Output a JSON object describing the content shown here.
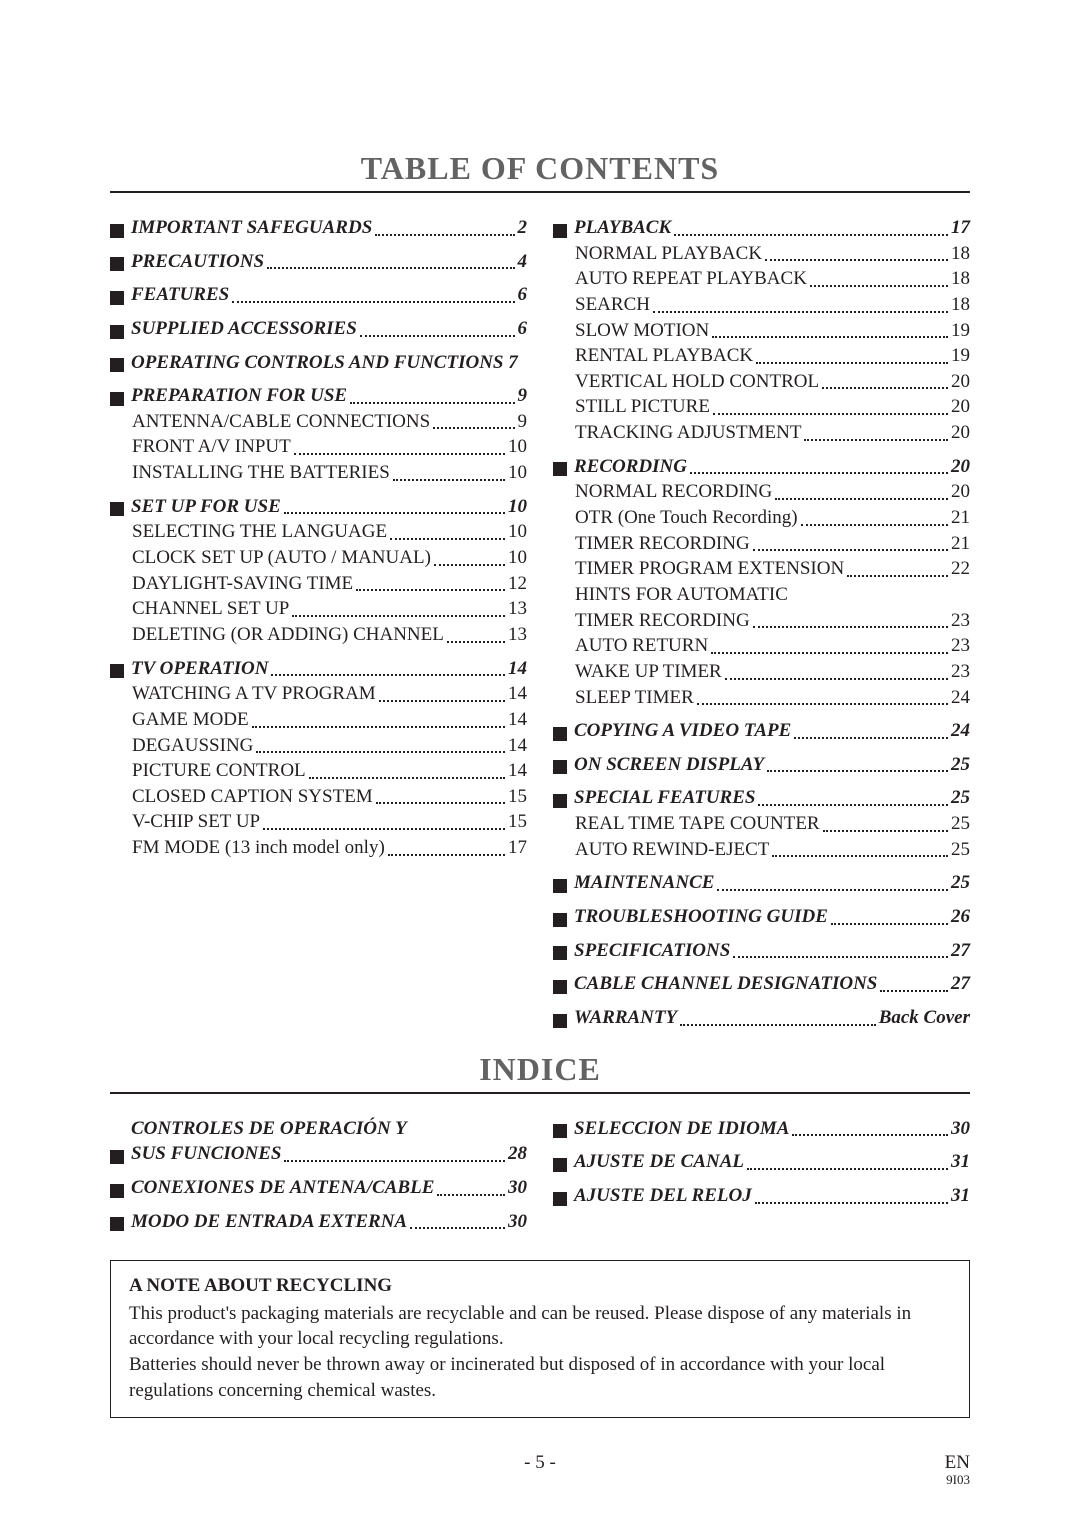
{
  "title_toc": "TABLE OF CONTENTS",
  "title_indice": "INDICE",
  "colors": {
    "text": "#231f20",
    "title_grey": "#636363",
    "background": "#ffffff"
  },
  "toc": {
    "left": [
      {
        "major": true,
        "label": "IMPORTANT SAFEGUARDS",
        "page": "2"
      },
      {
        "major": true,
        "label": "PRECAUTIONS",
        "page": "4"
      },
      {
        "major": true,
        "label": "FEATURES",
        "page": "6"
      },
      {
        "major": true,
        "label": "SUPPLIED ACCESSORIES",
        "page": "6"
      },
      {
        "major": true,
        "label": "OPERATING CONTROLS AND FUNCTIONS",
        "page": "7",
        "nodots": true
      },
      {
        "major": true,
        "label": "PREPARATION FOR USE",
        "page": "9"
      },
      {
        "major": false,
        "label": "ANTENNA/CABLE CONNECTIONS",
        "page": "9"
      },
      {
        "major": false,
        "label": "FRONT A/V INPUT",
        "page": "10"
      },
      {
        "major": false,
        "label": "INSTALLING THE BATTERIES",
        "page": "10"
      },
      {
        "major": true,
        "label": "SET UP FOR USE",
        "page": "10"
      },
      {
        "major": false,
        "label": "SELECTING THE LANGUAGE",
        "page": "10"
      },
      {
        "major": false,
        "label": "CLOCK SET UP (AUTO / MANUAL)",
        "page": "10"
      },
      {
        "major": false,
        "label": "DAYLIGHT-SAVING TIME",
        "page": "12"
      },
      {
        "major": false,
        "label": "CHANNEL SET UP",
        "page": "13"
      },
      {
        "major": false,
        "label": "DELETING (OR ADDING) CHANNEL",
        "page": "13"
      },
      {
        "major": true,
        "label": "TV OPERATION",
        "page": "14"
      },
      {
        "major": false,
        "label": "WATCHING A TV PROGRAM",
        "page": "14"
      },
      {
        "major": false,
        "label": "GAME MODE",
        "page": "14"
      },
      {
        "major": false,
        "label": "DEGAUSSING",
        "page": "14"
      },
      {
        "major": false,
        "label": "PICTURE CONTROL",
        "page": "14"
      },
      {
        "major": false,
        "label": "CLOSED CAPTION SYSTEM",
        "page": "15"
      },
      {
        "major": false,
        "label": "V-CHIP SET UP",
        "page": "15"
      },
      {
        "major": false,
        "label": "FM MODE (13 inch model only)",
        "page": "17"
      }
    ],
    "right": [
      {
        "major": true,
        "label": "PLAYBACK",
        "page": "17"
      },
      {
        "major": false,
        "label": "NORMAL PLAYBACK",
        "page": "18"
      },
      {
        "major": false,
        "label": "AUTO REPEAT PLAYBACK",
        "page": "18"
      },
      {
        "major": false,
        "label": "SEARCH",
        "page": "18"
      },
      {
        "major": false,
        "label": "SLOW MOTION",
        "page": "19"
      },
      {
        "major": false,
        "label": "RENTAL PLAYBACK",
        "page": "19"
      },
      {
        "major": false,
        "label": "VERTICAL HOLD CONTROL",
        "page": "20"
      },
      {
        "major": false,
        "label": "STILL PICTURE",
        "page": "20"
      },
      {
        "major": false,
        "label": "TRACKING ADJUSTMENT",
        "page": "20"
      },
      {
        "major": true,
        "label": "RECORDING",
        "page": "20"
      },
      {
        "major": false,
        "label": "NORMAL RECORDING",
        "page": "20"
      },
      {
        "major": false,
        "label": "OTR (One Touch Recording)",
        "page": "21"
      },
      {
        "major": false,
        "label": "TIMER RECORDING",
        "page": "21"
      },
      {
        "major": false,
        "label": "TIMER PROGRAM EXTENSION",
        "page": "22"
      },
      {
        "major": false,
        "label": "HINTS FOR AUTOMATIC TIMER RECORDING",
        "page": "23",
        "wrap": true
      },
      {
        "major": false,
        "label": "AUTO RETURN",
        "page": "23"
      },
      {
        "major": false,
        "label": "WAKE UP TIMER",
        "page": "23"
      },
      {
        "major": false,
        "label": "SLEEP TIMER",
        "page": "24"
      },
      {
        "major": true,
        "label": "COPYING A VIDEO TAPE",
        "page": "24"
      },
      {
        "major": true,
        "label": "ON SCREEN DISPLAY",
        "page": "25"
      },
      {
        "major": true,
        "label": "SPECIAL FEATURES",
        "page": "25"
      },
      {
        "major": false,
        "label": "REAL TIME TAPE COUNTER",
        "page": "25"
      },
      {
        "major": false,
        "label": "AUTO REWIND-EJECT",
        "page": "25"
      },
      {
        "major": true,
        "label": "MAINTENANCE",
        "page": "25"
      },
      {
        "major": true,
        "label": "TROUBLESHOOTING GUIDE",
        "page": "26"
      },
      {
        "major": true,
        "label": "SPECIFICATIONS",
        "page": "27"
      },
      {
        "major": true,
        "label": "CABLE CHANNEL DESIGNATIONS",
        "page": "27"
      },
      {
        "major": true,
        "label": "WARRANTY",
        "page": "Back Cover"
      }
    ]
  },
  "indice": {
    "left": [
      {
        "label": "CONTROLES DE OPERACIÓN Y SUS FUNCIONES",
        "page": "28",
        "wrap": true
      },
      {
        "label": "CONEXIONES DE ANTENA/CABLE",
        "page": "30"
      },
      {
        "label": "MODO DE ENTRADA EXTERNA",
        "page": "30"
      }
    ],
    "right": [
      {
        "label": "SELECCION DE IDIOMA",
        "page": "30"
      },
      {
        "label": "AJUSTE DE CANAL",
        "page": "31"
      },
      {
        "label": "AJUSTE DEL RELOJ",
        "page": "31"
      }
    ]
  },
  "note": {
    "title": "A NOTE ABOUT RECYCLING",
    "p1": "This product's packaging materials are recyclable and can be reused. Please dispose of any materials in accordance with your local recycling regulations.",
    "p2": "Batteries should never be thrown away or incinerated but disposed of in accordance with your local regulations concerning chemical wastes."
  },
  "footer": {
    "page_num": "- 5 -",
    "lang": "EN",
    "code": "9I03"
  }
}
